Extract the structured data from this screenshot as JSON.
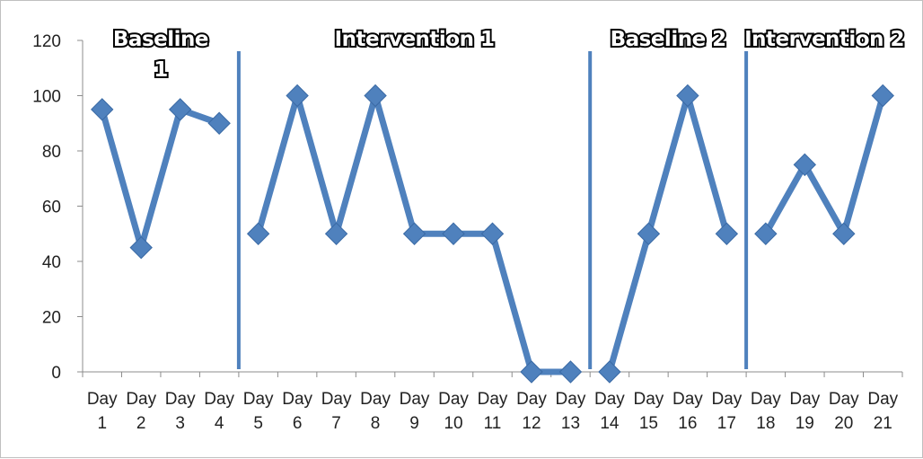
{
  "chart_data": {
    "type": "line",
    "title": "",
    "xlabel": "",
    "ylabel": "",
    "ylim": [
      0,
      120
    ],
    "yticks": [
      0,
      20,
      40,
      60,
      80,
      100,
      120
    ],
    "grid": false,
    "categories": [
      [
        "Day",
        "1"
      ],
      [
        "Day",
        "2"
      ],
      [
        "Day",
        "3"
      ],
      [
        "Day",
        "4"
      ],
      [
        "Day",
        "5"
      ],
      [
        "Day",
        "6"
      ],
      [
        "Day",
        "7"
      ],
      [
        "Day",
        "8"
      ],
      [
        "Day",
        "9"
      ],
      [
        "Day",
        "10"
      ],
      [
        "Day",
        "11"
      ],
      [
        "Day",
        "12"
      ],
      [
        "Day",
        "13"
      ],
      [
        "Day",
        "14"
      ],
      [
        "Day",
        "15"
      ],
      [
        "Day",
        "16"
      ],
      [
        "Day",
        "17"
      ],
      [
        "Day",
        "18"
      ],
      [
        "Day",
        "19"
      ],
      [
        "Day",
        "20"
      ],
      [
        "Day",
        "21"
      ]
    ],
    "series": [
      {
        "segments": [
          [
            0,
            [
              95,
              45,
              95,
              90
            ]
          ],
          [
            4,
            [
              50,
              100,
              50,
              100,
              50,
              50,
              50,
              0,
              0
            ]
          ],
          [
            13,
            [
              0,
              50,
              100,
              50
            ]
          ],
          [
            17,
            [
              50,
              75,
              50,
              100
            ]
          ]
        ]
      }
    ],
    "phase_lines_after_category_index": [
      3,
      12,
      16
    ],
    "phases": [
      {
        "label_lines": [
          "Baseline",
          "1"
        ],
        "start": 0,
        "end": 3
      },
      {
        "label_lines": [
          "Intervention 1"
        ],
        "start": 4,
        "end": 12
      },
      {
        "label_lines": [
          "Baseline 2"
        ],
        "start": 13,
        "end": 16
      },
      {
        "label_lines": [
          "Intervention 2"
        ],
        "start": 17,
        "end": 20
      }
    ],
    "colors": {
      "series": "#4f81bd",
      "marker": "#4f81bd",
      "phase_line": "#4f81bd",
      "axis": "#8c8c8c"
    }
  }
}
